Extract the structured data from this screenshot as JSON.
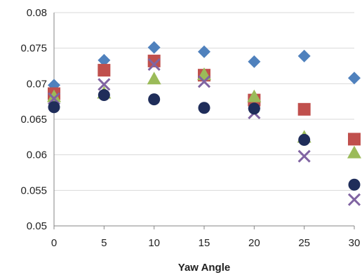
{
  "chart_data": {
    "type": "scatter",
    "title": "",
    "xlabel": "Yaw Angle",
    "ylabel": "",
    "x": [
      0,
      5,
      10,
      15,
      20,
      25,
      30
    ],
    "xlim": [
      0,
      30
    ],
    "ylim": [
      0.05,
      0.08
    ],
    "x_ticks": [
      "0",
      "5",
      "10",
      "15",
      "20",
      "25",
      "30"
    ],
    "y_ticks": [
      "0.05",
      "0.055",
      "0.06",
      "0.065",
      "0.07",
      "0.075",
      "0.08"
    ],
    "grid": "horizontal",
    "legend": "none",
    "series": [
      {
        "marker": "diamond",
        "color": "#4f81bd",
        "values": [
          0.0698,
          0.0733,
          0.0751,
          0.0745,
          0.0731,
          0.0739,
          0.0708
        ]
      },
      {
        "marker": "square",
        "color": "#c0504d",
        "values": [
          0.0686,
          0.0719,
          0.0732,
          0.0712,
          0.0677,
          0.0664,
          0.0622
        ]
      },
      {
        "marker": "triangle",
        "color": "#9bbb59",
        "values": [
          0.0682,
          0.0687,
          0.0707,
          0.0713,
          0.0682,
          0.0625,
          0.0603
        ]
      },
      {
        "marker": "x",
        "color": "#8064a2",
        "values": [
          0.0679,
          0.0699,
          0.0727,
          0.0703,
          0.0659,
          0.0598,
          0.0537
        ]
      },
      {
        "marker": "circle",
        "color": "#1f2d5a",
        "values": [
          0.0667,
          0.0684,
          0.0678,
          0.0666,
          0.0665,
          0.0621,
          0.0558
        ]
      }
    ]
  }
}
